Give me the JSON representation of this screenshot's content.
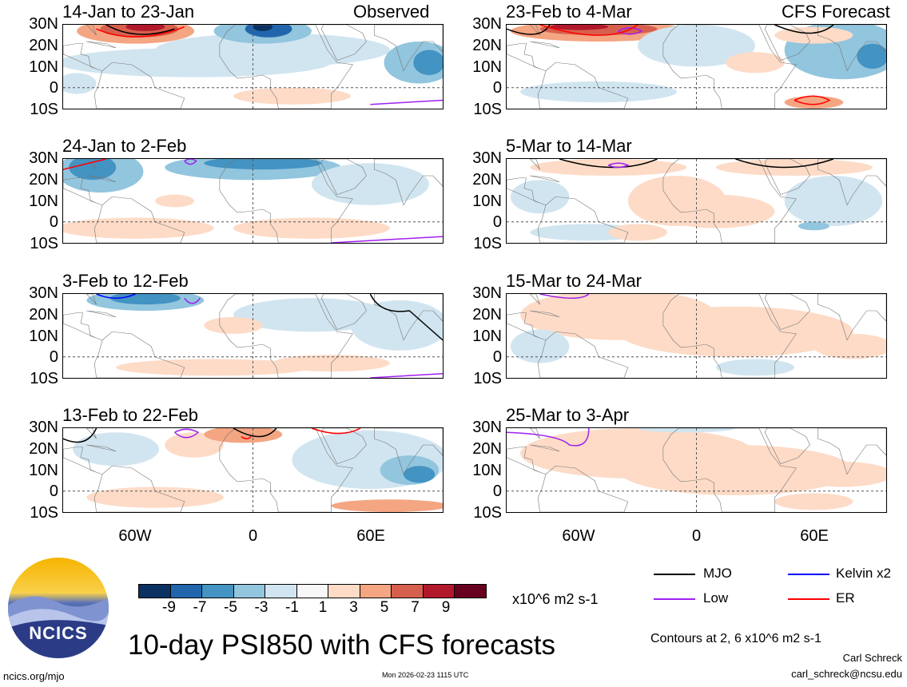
{
  "header": {
    "observed_label": "Observed",
    "forecast_label": "CFS Forecast"
  },
  "panels": [
    {
      "title": "14-Jan to 23-Jan",
      "column": "observed"
    },
    {
      "title": "24-Jan to 2-Feb",
      "column": "observed"
    },
    {
      "title": "3-Feb to 12-Feb",
      "column": "observed"
    },
    {
      "title": "13-Feb to 22-Feb",
      "column": "observed"
    },
    {
      "title": "23-Feb to 4-Mar",
      "column": "forecast"
    },
    {
      "title": "5-Mar to 14-Mar",
      "column": "forecast"
    },
    {
      "title": "15-Mar to 24-Mar",
      "column": "forecast"
    },
    {
      "title": "25-Mar to 3-Apr",
      "column": "forecast"
    }
  ],
  "axes": {
    "lat_labels": [
      "30N",
      "20N",
      "10N",
      "0",
      "10S"
    ],
    "lon_labels": [
      "60W",
      "0",
      "60E"
    ]
  },
  "colorbar": {
    "labels": [
      "-9",
      "-7",
      "-5",
      "-3",
      "-1",
      "1",
      "3",
      "5",
      "7",
      "9"
    ],
    "colors": [
      "#0a3161",
      "#2166ac",
      "#4393c3",
      "#92c5de",
      "#d1e5f0",
      "#f7f7f7",
      "#fddbc7",
      "#f4a582",
      "#d6604d",
      "#b2182b",
      "#67001f"
    ],
    "units": "x10^6 m2 s-1"
  },
  "legend": {
    "items": [
      {
        "label": "MJO",
        "color": "#000000"
      },
      {
        "label": "Kelvin x2",
        "color": "#0000ff"
      },
      {
        "label": "Low",
        "color": "#a020f0"
      },
      {
        "label": "ER",
        "color": "#ff0000"
      }
    ],
    "contours_note": "Contours at 2, 6 x10^6 m2 s-1"
  },
  "footer": {
    "title": "10-day PSI850 with CFS forecasts",
    "timestamp": "Mon 2026-02-23 1115 UTC",
    "site": "ncics.org/mjo",
    "author": "Carl Schreck",
    "email": "carl_schreck@ncsu.edu",
    "logo_text": "NCICS"
  }
}
